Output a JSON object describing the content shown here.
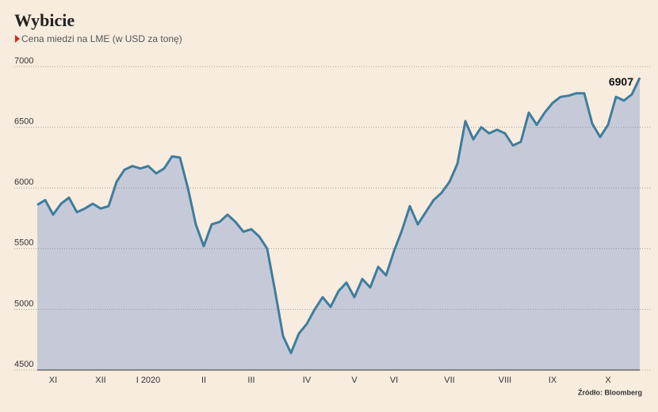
{
  "chart_data": {
    "type": "area",
    "title": "Wybicie",
    "subtitle": "Cena miedzi na LME (w USD za tonę)",
    "source": "Źródło: Bloomberg",
    "categories": [
      null,
      null,
      "XI",
      null,
      null,
      null,
      null,
      null,
      "XII",
      null,
      null,
      null,
      null,
      null,
      "I 2020",
      null,
      null,
      null,
      null,
      null,
      null,
      "II",
      null,
      null,
      null,
      null,
      null,
      "III",
      null,
      null,
      null,
      null,
      null,
      null,
      "IV",
      null,
      null,
      null,
      null,
      null,
      "V",
      null,
      null,
      null,
      null,
      "VI",
      null,
      null,
      null,
      null,
      null,
      null,
      "VII",
      null,
      null,
      null,
      null,
      null,
      null,
      "VIII",
      null,
      null,
      null,
      null,
      null,
      "IX",
      null,
      null,
      null,
      null,
      null,
      null,
      "X",
      null,
      null,
      null,
      null
    ],
    "values": [
      5860,
      5900,
      5780,
      5870,
      5920,
      5800,
      5830,
      5870,
      5830,
      5850,
      6050,
      6150,
      6180,
      6160,
      6180,
      6120,
      6160,
      6260,
      6250,
      6000,
      5700,
      5520,
      5700,
      5720,
      5780,
      5720,
      5640,
      5660,
      5600,
      5500,
      5150,
      4780,
      4640,
      4800,
      4880,
      5000,
      5100,
      5020,
      5150,
      5220,
      5100,
      5250,
      5180,
      5350,
      5280,
      5480,
      5650,
      5850,
      5700,
      5800,
      5900,
      5960,
      6050,
      6200,
      6550,
      6400,
      6500,
      6450,
      6480,
      6450,
      6350,
      6380,
      6620,
      6520,
      6620,
      6700,
      6750,
      6760,
      6780,
      6780,
      6530,
      6420,
      6520,
      6750,
      6720,
      6770,
      6907
    ],
    "color": "#3f7d9c",
    "fill": "#c6cad8",
    "ylim": [
      4500,
      7000
    ],
    "yticks": [
      4500,
      5000,
      5500,
      6000,
      6500,
      7000
    ],
    "grid": true
  }
}
